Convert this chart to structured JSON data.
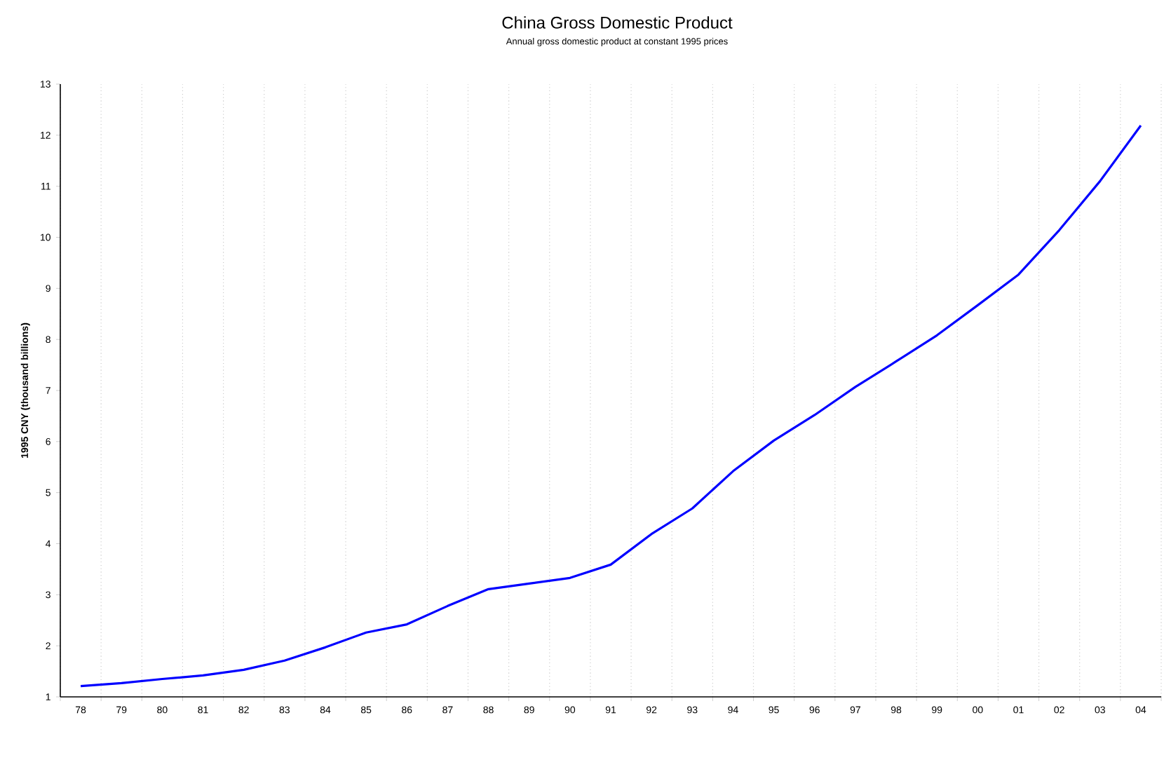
{
  "chart_data": {
    "type": "line",
    "title": "China Gross Domestic Product",
    "subtitle": "Annual gross domestic product at constant 1995 prices",
    "ylabel": "1995 CNY (thousand billions)",
    "categories": [
      "78",
      "79",
      "80",
      "81",
      "82",
      "83",
      "84",
      "85",
      "86",
      "87",
      "88",
      "89",
      "90",
      "91",
      "92",
      "93",
      "94",
      "95",
      "96",
      "97",
      "98",
      "99",
      "00",
      "01",
      "02",
      "03",
      "04"
    ],
    "values": [
      1.21,
      1.27,
      1.35,
      1.42,
      1.53,
      1.71,
      1.97,
      2.26,
      2.42,
      2.78,
      3.11,
      3.22,
      3.33,
      3.59,
      4.19,
      4.69,
      5.42,
      6.02,
      6.52,
      7.07,
      7.57,
      8.08,
      8.67,
      9.27,
      10.14,
      11.1,
      12.19
    ],
    "color": "#0000ff",
    "ylim": [
      1,
      13
    ],
    "yticks": [
      1,
      2,
      3,
      4,
      5,
      6,
      7,
      8,
      9,
      10,
      11,
      12,
      13
    ],
    "grid": true,
    "marker": "none",
    "line_style": "solid"
  }
}
